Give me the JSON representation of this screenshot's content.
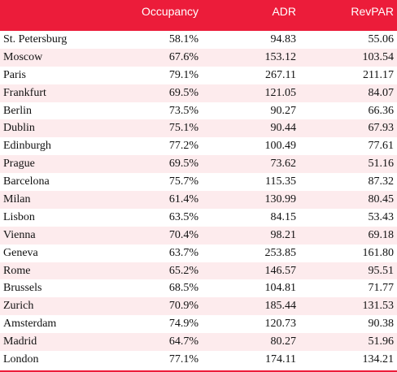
{
  "chart_data": {
    "type": "table",
    "columns": [
      "",
      "Occupancy",
      "ADR",
      "RevPAR"
    ],
    "rows": [
      {
        "city": "St. Petersburg",
        "occupancy": "58.1%",
        "adr": "94.83",
        "revpar": "55.06"
      },
      {
        "city": "Moscow",
        "occupancy": "67.6%",
        "adr": "153.12",
        "revpar": "103.54"
      },
      {
        "city": "Paris",
        "occupancy": "79.1%",
        "adr": "267.11",
        "revpar": "211.17"
      },
      {
        "city": "Frankfurt",
        "occupancy": "69.5%",
        "adr": "121.05",
        "revpar": "84.07"
      },
      {
        "city": "Berlin",
        "occupancy": "73.5%",
        "adr": "90.27",
        "revpar": "66.36"
      },
      {
        "city": "Dublin",
        "occupancy": "75.1%",
        "adr": "90.44",
        "revpar": "67.93"
      },
      {
        "city": "Edinburgh",
        "occupancy": "77.2%",
        "adr": "100.49",
        "revpar": "77.61"
      },
      {
        "city": "Prague",
        "occupancy": "69.5%",
        "adr": "73.62",
        "revpar": "51.16"
      },
      {
        "city": "Barcelona",
        "occupancy": "75.7%",
        "adr": "115.35",
        "revpar": "87.32"
      },
      {
        "city": "Milan",
        "occupancy": "61.4%",
        "adr": "130.99",
        "revpar": "80.45"
      },
      {
        "city": "Lisbon",
        "occupancy": "63.5%",
        "adr": "84.15",
        "revpar": "53.43"
      },
      {
        "city": "Vienna",
        "occupancy": "70.4%",
        "adr": "98.21",
        "revpar": "69.18"
      },
      {
        "city": "Geneva",
        "occupancy": "63.7%",
        "adr": "253.85",
        "revpar": "161.80"
      },
      {
        "city": "Rome",
        "occupancy": "65.2%",
        "adr": "146.57",
        "revpar": "95.51"
      },
      {
        "city": "Brussels",
        "occupancy": "68.5%",
        "adr": "104.81",
        "revpar": "71.77"
      },
      {
        "city": "Zurich",
        "occupancy": "70.9%",
        "adr": "185.44",
        "revpar": "131.53"
      },
      {
        "city": "Amsterdam",
        "occupancy": "74.9%",
        "adr": "120.73",
        "revpar": "90.38"
      },
      {
        "city": "Madrid",
        "occupancy": "64.7%",
        "adr": "80.27",
        "revpar": "51.96"
      },
      {
        "city": "London",
        "occupancy": "77.1%",
        "adr": "174.11",
        "revpar": "134.21"
      }
    ]
  },
  "colors": {
    "header_bg": "#ec1c3a",
    "stripe_bg": "#fdebed"
  }
}
